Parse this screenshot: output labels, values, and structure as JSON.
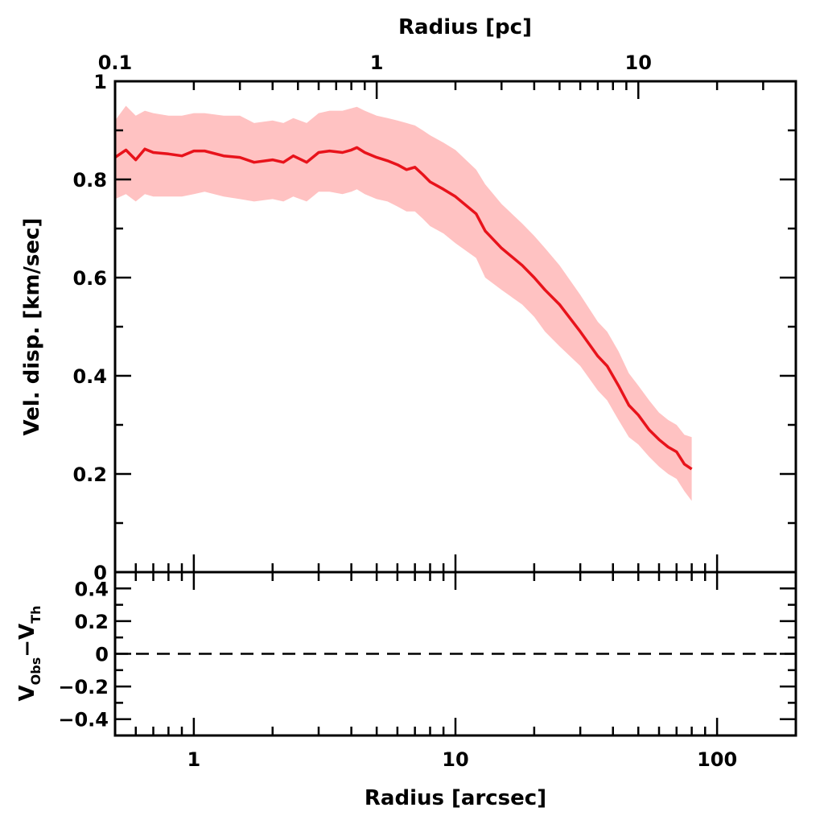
{
  "chart_data": [
    {
      "type": "line",
      "panel": "upper",
      "xscale": "log",
      "xlim": [
        0.5,
        200
      ],
      "ylim": [
        0,
        1
      ],
      "xlabel_top": "Radius [pc]",
      "ylabel": "Vel. disp. [km/sec]",
      "top_axis_ticks": [
        "0.1",
        "1",
        "10"
      ],
      "y_ticks": [
        "0",
        "0.2",
        "0.4",
        "0.6",
        "0.8",
        "1"
      ],
      "series": [
        {
          "color": "#e8131b",
          "x": [
            0.5,
            0.55,
            0.6,
            0.65,
            0.7,
            0.8,
            0.9,
            1.0,
            1.1,
            1.3,
            1.5,
            1.7,
            2.0,
            2.2,
            2.4,
            2.7,
            3.0,
            3.3,
            3.7,
            4.0,
            4.2,
            4.5,
            5.0,
            5.5,
            6.0,
            6.5,
            7.0,
            7.5,
            8.0,
            9.0,
            10.0,
            12.0,
            13.0,
            15.0,
            18.0,
            20.0,
            22.0,
            25.0,
            30.0,
            35.0,
            38.0,
            42.0,
            46.0,
            50.0,
            55.0,
            60.0,
            65.0,
            70.0,
            75.0,
            80.0
          ],
          "y": [
            0.845,
            0.86,
            0.84,
            0.862,
            0.855,
            0.852,
            0.848,
            0.858,
            0.858,
            0.848,
            0.845,
            0.835,
            0.84,
            0.835,
            0.848,
            0.835,
            0.855,
            0.858,
            0.855,
            0.86,
            0.865,
            0.855,
            0.845,
            0.838,
            0.83,
            0.82,
            0.825,
            0.81,
            0.795,
            0.78,
            0.765,
            0.73,
            0.695,
            0.66,
            0.625,
            0.6,
            0.575,
            0.545,
            0.49,
            0.44,
            0.42,
            0.38,
            0.34,
            0.32,
            0.29,
            0.27,
            0.255,
            0.245,
            0.22,
            0.21
          ],
          "y_upper": [
            0.92,
            0.95,
            0.93,
            0.94,
            0.935,
            0.93,
            0.93,
            0.935,
            0.935,
            0.93,
            0.93,
            0.915,
            0.92,
            0.915,
            0.925,
            0.915,
            0.935,
            0.94,
            0.94,
            0.945,
            0.948,
            0.94,
            0.93,
            0.925,
            0.92,
            0.915,
            0.91,
            0.9,
            0.89,
            0.875,
            0.86,
            0.82,
            0.79,
            0.75,
            0.71,
            0.685,
            0.66,
            0.625,
            0.565,
            0.51,
            0.49,
            0.45,
            0.405,
            0.38,
            0.35,
            0.325,
            0.31,
            0.3,
            0.28,
            0.275
          ],
          "y_lower": [
            0.76,
            0.77,
            0.755,
            0.77,
            0.765,
            0.765,
            0.765,
            0.77,
            0.775,
            0.765,
            0.76,
            0.755,
            0.76,
            0.755,
            0.765,
            0.755,
            0.775,
            0.775,
            0.77,
            0.775,
            0.78,
            0.77,
            0.76,
            0.755,
            0.745,
            0.735,
            0.735,
            0.72,
            0.705,
            0.69,
            0.67,
            0.64,
            0.6,
            0.575,
            0.545,
            0.52,
            0.49,
            0.46,
            0.42,
            0.37,
            0.35,
            0.31,
            0.275,
            0.26,
            0.235,
            0.215,
            0.2,
            0.19,
            0.165,
            0.145
          ]
        }
      ]
    },
    {
      "type": "line",
      "panel": "lower",
      "xscale": "log",
      "xlim": [
        0.5,
        200
      ],
      "ylim": [
        -0.5,
        0.5
      ],
      "xlabel": "Radius [arcsec]",
      "ylabel_main": "V",
      "ylabel_sub1": "Obs",
      "ylabel_minus": "−",
      "ylabel_main2": "V",
      "ylabel_sub2": "Th",
      "x_ticks": [
        "1",
        "10",
        "100"
      ],
      "y_ticks": [
        "0.4",
        "0.2",
        "0",
        "−0.2",
        "−0.4"
      ],
      "reference_line": {
        "y": 0,
        "style": "dashed"
      }
    }
  ]
}
